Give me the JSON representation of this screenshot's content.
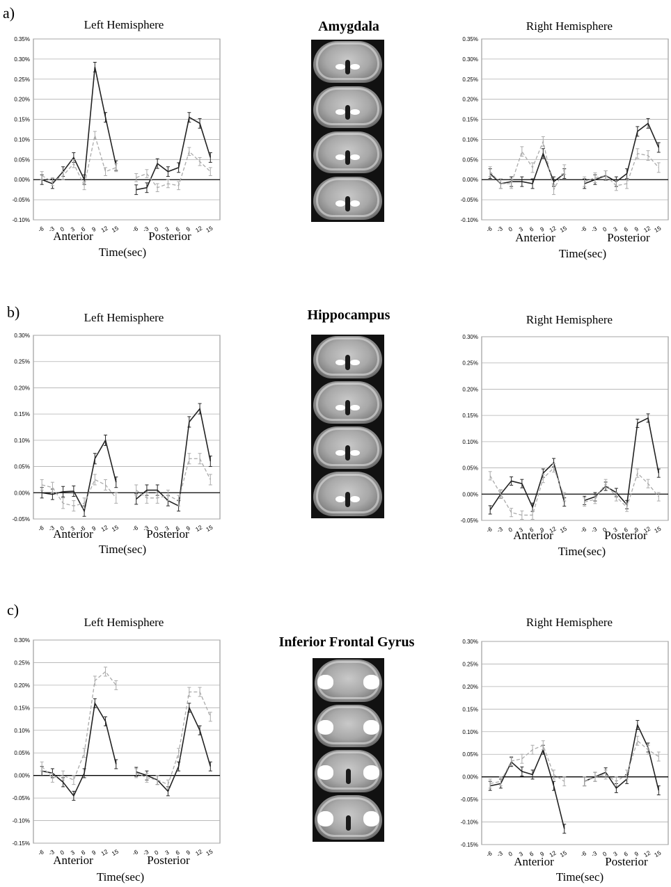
{
  "panels": [
    {
      "label": "a)",
      "region": "Amygdala",
      "left_title": "Left Hemisphere",
      "right_title": "Right Hemisphere"
    },
    {
      "label": "b)",
      "region": "Hippocampus",
      "left_title": "Left Hemisphere",
      "right_title": "Right Hemisphere"
    },
    {
      "label": "c)",
      "region": "Inferior Frontal Gyrus",
      "left_title": "Left Hemisphere",
      "right_title": "Right Hemisphere"
    }
  ],
  "x_groups": {
    "anterior": "Anterior",
    "posterior": "Posterior"
  },
  "x_title": "Time(sec)",
  "colors": {
    "solid": "#222222",
    "dashed": "#aaaaaa",
    "grid": "#b0b0b0"
  },
  "chart_data": [
    {
      "type": "line",
      "name": "a-left",
      "ylim": [
        -0.1,
        0.35
      ],
      "yticks": [
        -0.1,
        -0.05,
        0,
        0.05,
        0.1,
        0.15,
        0.2,
        0.25,
        0.3,
        0.35
      ],
      "x": [
        "-6",
        "-3",
        "0",
        "3",
        "6",
        "9",
        "12",
        "15",
        "-6",
        "-3",
        "0",
        "3",
        "6",
        "9",
        "12",
        "15"
      ],
      "series": [
        {
          "style": "solid",
          "anterior": [
            0,
            -0.01,
            0.02,
            0.055,
            0,
            0.28,
            0.155,
            0.035
          ],
          "posterior": [
            -0.025,
            -0.02,
            0.04,
            0.02,
            0.03,
            0.155,
            0.14,
            0.055
          ],
          "err": 0.012
        },
        {
          "style": "dashed",
          "anterior": [
            0.01,
            -0.005,
            0.01,
            0.04,
            -0.015,
            0.11,
            0.02,
            0.03
          ],
          "posterior": [
            0.005,
            0.015,
            -0.02,
            -0.01,
            -0.015,
            0.07,
            0.045,
            0.02
          ],
          "err": 0.01
        }
      ]
    },
    {
      "type": "line",
      "name": "a-right",
      "ylim": [
        -0.1,
        0.35
      ],
      "yticks": [
        -0.1,
        -0.05,
        0,
        0.05,
        0.1,
        0.15,
        0.2,
        0.25,
        0.3,
        0.35
      ],
      "x": [
        "-6",
        "-3",
        "0",
        "3",
        "6",
        "9",
        "12",
        "15",
        "-6",
        "-3",
        "0",
        "3",
        "6",
        "9",
        "12",
        "15"
      ],
      "series": [
        {
          "style": "solid",
          "anterior": [
            0.015,
            -0.01,
            -0.005,
            -0.005,
            -0.01,
            0.065,
            -0.005,
            0.015
          ],
          "posterior": [
            -0.01,
            0,
            0.01,
            -0.005,
            0.015,
            0.12,
            0.14,
            0.08
          ],
          "err": 0.012
        },
        {
          "style": "dashed",
          "anterior": [
            0.02,
            -0.01,
            -0.01,
            0.07,
            0.03,
            0.095,
            -0.025,
            0.025
          ],
          "posterior": [
            -0.005,
            0.005,
            0.01,
            -0.015,
            -0.01,
            0.065,
            0.06,
            0.03
          ],
          "err": 0.012
        }
      ]
    },
    {
      "type": "line",
      "name": "b-left",
      "ylim": [
        -0.05,
        0.3
      ],
      "yticks": [
        -0.05,
        0,
        0.05,
        0.1,
        0.15,
        0.2,
        0.25,
        0.3
      ],
      "x": [
        "-6",
        "-3",
        "0",
        "3",
        "6",
        "9",
        "12",
        "15",
        "-6",
        "-3",
        "0",
        "3",
        "6",
        "9",
        "12",
        "15"
      ],
      "series": [
        {
          "style": "solid",
          "anterior": [
            0,
            -0.003,
            0.002,
            0.003,
            -0.035,
            0.065,
            0.1,
            0.02
          ],
          "posterior": [
            -0.012,
            0.005,
            0.005,
            -0.015,
            -0.025,
            0.135,
            0.16,
            0.06
          ],
          "err": 0.01
        },
        {
          "style": "dashed",
          "anterior": [
            0.015,
            0.01,
            -0.02,
            -0.025,
            -0.02,
            0.025,
            0.015,
            -0.01
          ],
          "posterior": [
            0.005,
            -0.01,
            -0.01,
            -0.005,
            -0.015,
            0.065,
            0.065,
            0.025
          ],
          "err": 0.01
        }
      ]
    },
    {
      "type": "line",
      "name": "b-right",
      "ylim": [
        -0.05,
        0.3
      ],
      "yticks": [
        -0.05,
        0,
        0.05,
        0.1,
        0.15,
        0.2,
        0.25,
        0.3
      ],
      "x": [
        "-6",
        "-3",
        "0",
        "3",
        "6",
        "9",
        "12",
        "15",
        "-6",
        "-3",
        "0",
        "3",
        "6",
        "9",
        "12",
        "15"
      ],
      "series": [
        {
          "style": "solid",
          "anterior": [
            -0.03,
            0,
            0.025,
            0.02,
            -0.025,
            0.04,
            0.06,
            -0.015
          ],
          "posterior": [
            -0.012,
            -0.005,
            0.015,
            0.003,
            -0.02,
            0.135,
            0.145,
            0.04
          ],
          "err": 0.008
        },
        {
          "style": "dashed",
          "anterior": [
            0.035,
            0,
            -0.035,
            -0.04,
            -0.04,
            0.03,
            0.05,
            -0.005
          ],
          "posterior": [
            -0.015,
            -0.01,
            0.02,
            -0.005,
            -0.025,
            0.04,
            0.02,
            -0.005
          ],
          "err": 0.008
        }
      ]
    },
    {
      "type": "line",
      "name": "c-left",
      "ylim": [
        -0.15,
        0.3
      ],
      "yticks": [
        -0.15,
        -0.1,
        -0.05,
        0,
        0.05,
        0.1,
        0.15,
        0.2,
        0.25,
        0.3
      ],
      "x": [
        "-6",
        "-3",
        "0",
        "3",
        "6",
        "9",
        "12",
        "15",
        "-6",
        "-3",
        "0",
        "3",
        "6",
        "9",
        "12",
        "15"
      ],
      "series": [
        {
          "style": "solid",
          "anterior": [
            0.01,
            0.005,
            -0.015,
            -0.045,
            0.005,
            0.16,
            0.12,
            0.025
          ],
          "posterior": [
            0.008,
            0,
            -0.01,
            -0.035,
            0.02,
            0.15,
            0.1,
            0.02
          ],
          "err": 0.01
        },
        {
          "style": "dashed",
          "anterior": [
            0.02,
            -0.005,
            0,
            -0.01,
            0.05,
            0.21,
            0.23,
            0.2
          ],
          "posterior": [
            0.005,
            -0.005,
            -0.01,
            -0.02,
            0.05,
            0.185,
            0.185,
            0.13
          ],
          "err": 0.01
        }
      ]
    },
    {
      "type": "line",
      "name": "c-right",
      "ylim": [
        -0.15,
        0.3
      ],
      "yticks": [
        -0.15,
        -0.1,
        -0.05,
        0,
        0.05,
        0.1,
        0.15,
        0.2,
        0.25,
        0.3
      ],
      "x": [
        "-6",
        "-3",
        "0",
        "3",
        "6",
        "9",
        "12",
        "15",
        "-6",
        "-3",
        "0",
        "3",
        "6",
        "9",
        "12",
        "15"
      ],
      "series": [
        {
          "style": "solid",
          "anterior": [
            -0.02,
            -0.015,
            0.033,
            0.012,
            0.005,
            0.06,
            -0.02,
            -0.115
          ],
          "posterior": [
            -0.01,
            0,
            0.01,
            -0.025,
            -0.005,
            0.115,
            0.065,
            -0.03
          ],
          "err": 0.01
        },
        {
          "style": "dashed",
          "anterior": [
            -0.015,
            -0.01,
            0.035,
            0.04,
            0.06,
            0.07,
            0.005,
            -0.01
          ],
          "posterior": [
            -0.01,
            0,
            0.005,
            -0.01,
            0.005,
            0.08,
            0.06,
            0.045
          ],
          "err": 0.01
        }
      ]
    }
  ]
}
